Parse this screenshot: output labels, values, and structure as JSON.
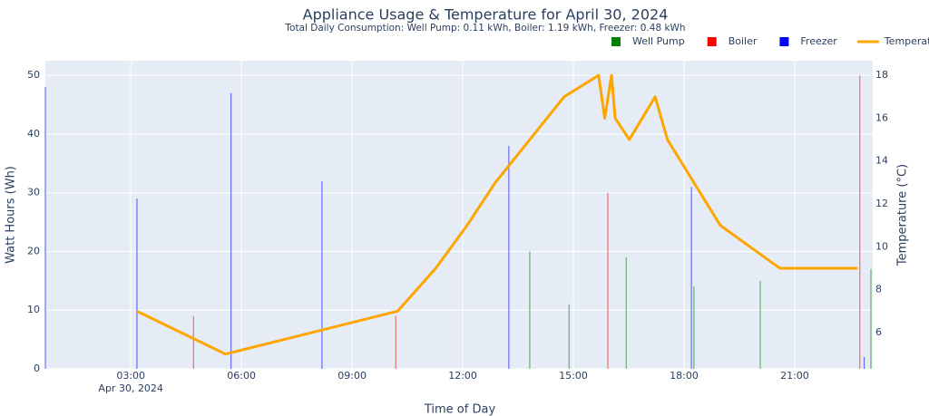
{
  "chart_data": {
    "type": "bar",
    "title": "Appliance Usage & Temperature for April 30, 2024",
    "subtitle": "Total Daily Consumption: Well Pump: 0.11 kWh, Boiler: 1.19 kWh, Freezer: 0.48 kWh",
    "x_label": "Time of Day",
    "y_label": "Watt Hours (Wh)",
    "y2_label": "Temperature (°C)",
    "x_date_label": "Apr 30, 2024",
    "xlim": [
      "00:41",
      "23:07"
    ],
    "xticks": [
      "03:00",
      "06:00",
      "09:00",
      "12:00",
      "15:00",
      "18:00",
      "21:00"
    ],
    "ylim": [
      0,
      52.5
    ],
    "yticks": [
      0,
      10,
      20,
      30,
      40,
      50
    ],
    "y2lim": [
      4.31,
      18.68
    ],
    "y2ticks": [
      6,
      8,
      10,
      12,
      14,
      16,
      18
    ],
    "grid": true,
    "legend_position": "top-right",
    "series": [
      {
        "name": "Well Pump",
        "color": "#008000",
        "type": "bar",
        "x": [
          "13:49",
          "14:53",
          "16:26",
          "18:16",
          "20:04",
          "23:04"
        ],
        "values": [
          20,
          11,
          19,
          14,
          15,
          17
        ]
      },
      {
        "name": "Boiler",
        "color": "#ff0000",
        "type": "bar",
        "x": [
          "04:42",
          "10:11",
          "15:56",
          "22:46"
        ],
        "values": [
          9,
          9,
          30,
          50
        ]
      },
      {
        "name": "Freezer",
        "color": "#0000ff",
        "type": "bar",
        "x": [
          "00:41",
          "03:10",
          "05:43",
          "08:11",
          "13:15",
          "18:12",
          "22:53"
        ],
        "values": [
          48,
          29,
          47,
          32,
          38,
          31,
          2
        ]
      },
      {
        "name": "Temperature",
        "color": "#ffa500",
        "type": "line",
        "axis": "y2",
        "x": [
          "03:10",
          "05:34",
          "10:14",
          "11:16",
          "12:07",
          "12:53",
          "14:45",
          "15:41",
          "15:51",
          "16:02",
          "16:08",
          "16:31",
          "17:13",
          "17:33",
          "18:59",
          "20:36",
          "22:42"
        ],
        "values": [
          7,
          5,
          7,
          9,
          11,
          13,
          17,
          18,
          16,
          18,
          16,
          15,
          17,
          15,
          11,
          9,
          9
        ]
      }
    ]
  }
}
